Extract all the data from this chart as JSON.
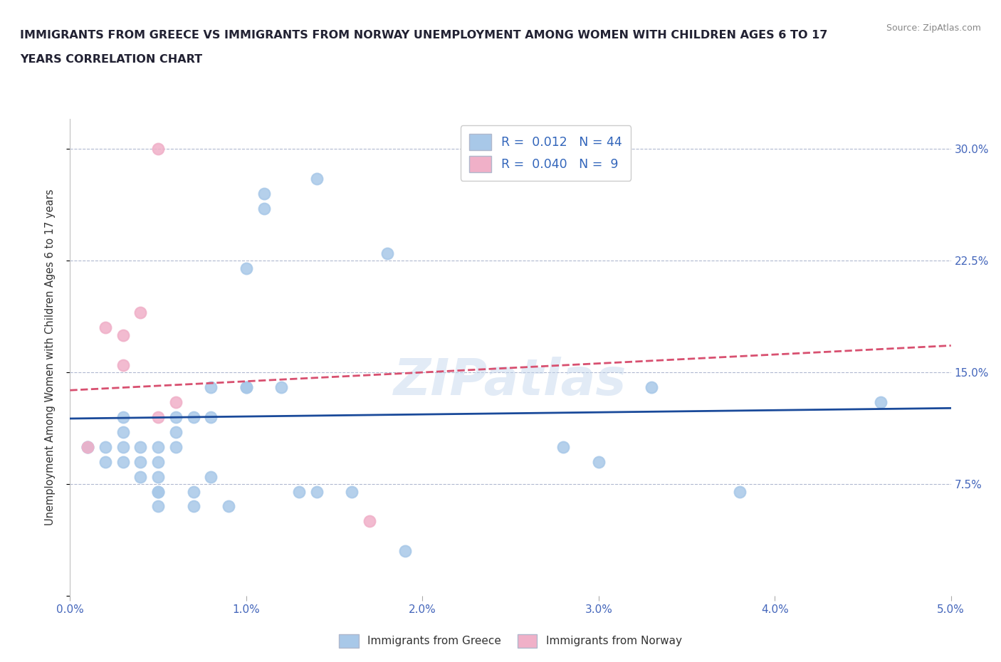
{
  "title": "IMMIGRANTS FROM GREECE VS IMMIGRANTS FROM NORWAY UNEMPLOYMENT AMONG WOMEN WITH CHILDREN AGES 6 TO 17\nYEARS CORRELATION CHART",
  "source_text": "Source: ZipAtlas.com",
  "ylabel": "Unemployment Among Women with Children Ages 6 to 17 years",
  "xlim": [
    0.0,
    0.05
  ],
  "ylim": [
    0.0,
    0.32
  ],
  "yticks": [
    0.0,
    0.075,
    0.15,
    0.225,
    0.3
  ],
  "ytick_labels": [
    "",
    "7.5%",
    "15.0%",
    "22.5%",
    "30.0%"
  ],
  "xticks": [
    0.0,
    0.01,
    0.02,
    0.03,
    0.04,
    0.05
  ],
  "xtick_labels": [
    "0.0%",
    "1.0%",
    "2.0%",
    "3.0%",
    "4.0%",
    "5.0%"
  ],
  "greece_R": "0.012",
  "greece_N": "44",
  "norway_R": "0.040",
  "norway_N": "9",
  "greece_color": "#a8c8e8",
  "norway_color": "#f0b0c8",
  "greece_line_color": "#1a4a9a",
  "norway_line_color": "#d85070",
  "watermark": "ZIPatlas",
  "greece_x": [
    0.001,
    0.001,
    0.002,
    0.002,
    0.003,
    0.003,
    0.003,
    0.003,
    0.004,
    0.004,
    0.004,
    0.005,
    0.005,
    0.005,
    0.005,
    0.005,
    0.005,
    0.006,
    0.006,
    0.006,
    0.007,
    0.007,
    0.007,
    0.008,
    0.008,
    0.008,
    0.009,
    0.01,
    0.01,
    0.01,
    0.011,
    0.011,
    0.012,
    0.013,
    0.014,
    0.014,
    0.016,
    0.018,
    0.019,
    0.028,
    0.03,
    0.033,
    0.038,
    0.046
  ],
  "greece_y": [
    0.1,
    0.1,
    0.09,
    0.1,
    0.09,
    0.1,
    0.11,
    0.12,
    0.08,
    0.09,
    0.1,
    0.06,
    0.07,
    0.07,
    0.08,
    0.09,
    0.1,
    0.1,
    0.11,
    0.12,
    0.06,
    0.07,
    0.12,
    0.08,
    0.12,
    0.14,
    0.06,
    0.14,
    0.14,
    0.22,
    0.26,
    0.27,
    0.14,
    0.07,
    0.07,
    0.28,
    0.07,
    0.23,
    0.03,
    0.1,
    0.09,
    0.14,
    0.07,
    0.13
  ],
  "norway_x": [
    0.001,
    0.002,
    0.003,
    0.003,
    0.004,
    0.005,
    0.005,
    0.006,
    0.017
  ],
  "norway_y": [
    0.1,
    0.18,
    0.155,
    0.175,
    0.19,
    0.3,
    0.12,
    0.13,
    0.05
  ],
  "greece_trend_x": [
    0.0,
    0.05
  ],
  "greece_trend_y": [
    0.119,
    0.126
  ],
  "norway_trend_x": [
    0.0,
    0.05
  ],
  "norway_trend_y": [
    0.138,
    0.168
  ]
}
